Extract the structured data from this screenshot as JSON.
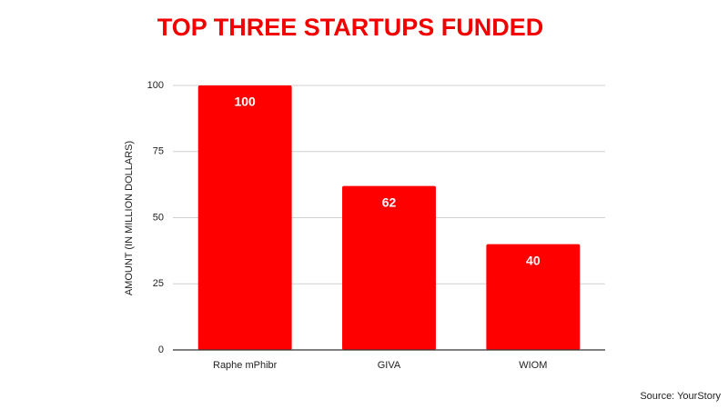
{
  "chart_data": {
    "type": "bar",
    "title": "TOP THREE STARTUPS FUNDED",
    "y_label": "AMOUNT (IN MILLION DOLLARS)",
    "source": "Source: YourStory",
    "categories": [
      "Raphe mPhibr",
      "GIVA",
      "WIOM"
    ],
    "values": [
      100,
      62,
      40
    ],
    "color": "#ff0000",
    "ylim": [
      0,
      100
    ],
    "yticks": [
      0,
      25,
      50,
      75,
      100
    ],
    "grid": true
  }
}
